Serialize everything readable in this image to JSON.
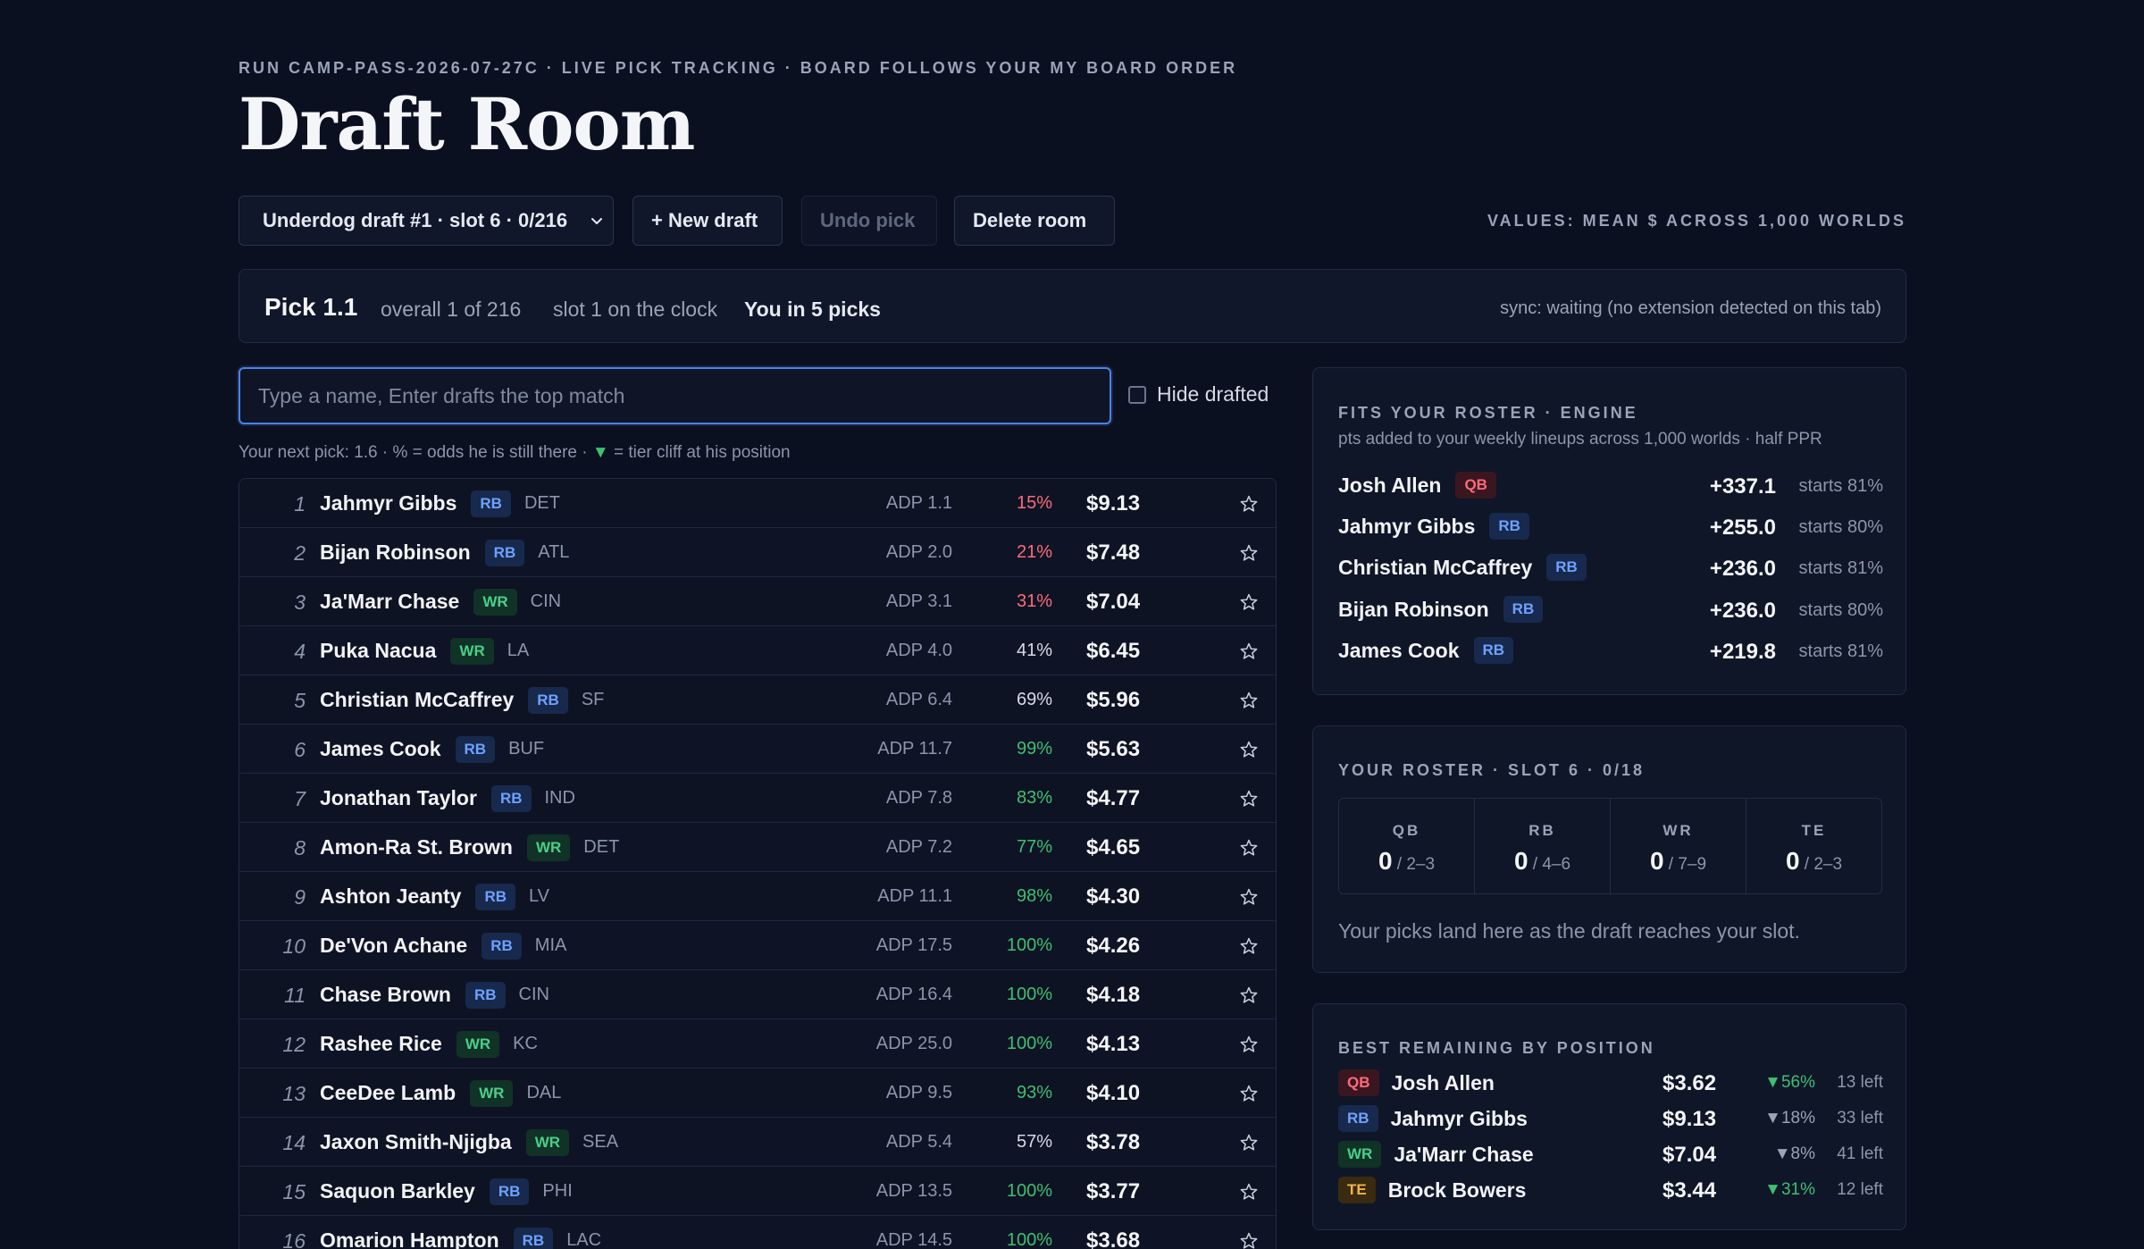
{
  "header": {
    "eyebrow": "RUN CAMP-PASS-2026-07-27C · LIVE PICK TRACKING · BOARD FOLLOWS YOUR MY BOARD ORDER",
    "title": "Draft Room"
  },
  "toolbar": {
    "draft_select": "Underdog draft #1 · slot 6 · 0/216",
    "new_draft": "+ New draft",
    "undo_pick": "Undo pick",
    "delete_room": "Delete room",
    "values_note": "VALUES: MEAN $ ACROSS 1,000 WORLDS"
  },
  "pickbar": {
    "pick": "Pick 1.1",
    "overall": "overall 1 of 216",
    "slot": "slot 1 on the clock",
    "you_in": "You in 5 picks",
    "sync": "sync: waiting (no extension detected on this tab)"
  },
  "search": {
    "placeholder": "Type a name, Enter drafts the top match",
    "value": "",
    "hide_drafted": "Hide drafted"
  },
  "legend": {
    "before": "Your next pick: 1.6 · % = odds he is still there ·",
    "triangle": "▼",
    "after": "= tier cliff at his position"
  },
  "players": [
    {
      "rank": "1",
      "name": "Jahmyr Gibbs",
      "pos": "RB",
      "team": "DET",
      "adp": "ADP 1.1",
      "odds": "15%",
      "tone": "low",
      "value": "$9.13"
    },
    {
      "rank": "2",
      "name": "Bijan Robinson",
      "pos": "RB",
      "team": "ATL",
      "adp": "ADP 2.0",
      "odds": "21%",
      "tone": "low",
      "value": "$7.48"
    },
    {
      "rank": "3",
      "name": "Ja'Marr Chase",
      "pos": "WR",
      "team": "CIN",
      "adp": "ADP 3.1",
      "odds": "31%",
      "tone": "low",
      "value": "$7.04"
    },
    {
      "rank": "4",
      "name": "Puka Nacua",
      "pos": "WR",
      "team": "LA",
      "adp": "ADP 4.0",
      "odds": "41%",
      "tone": "mid",
      "value": "$6.45"
    },
    {
      "rank": "5",
      "name": "Christian McCaffrey",
      "pos": "RB",
      "team": "SF",
      "adp": "ADP 6.4",
      "odds": "69%",
      "tone": "mid",
      "value": "$5.96"
    },
    {
      "rank": "6",
      "name": "James Cook",
      "pos": "RB",
      "team": "BUF",
      "adp": "ADP 11.7",
      "odds": "99%",
      "tone": "high",
      "value": "$5.63"
    },
    {
      "rank": "7",
      "name": "Jonathan Taylor",
      "pos": "RB",
      "team": "IND",
      "adp": "ADP 7.8",
      "odds": "83%",
      "tone": "high",
      "value": "$4.77"
    },
    {
      "rank": "8",
      "name": "Amon-Ra St. Brown",
      "pos": "WR",
      "team": "DET",
      "adp": "ADP 7.2",
      "odds": "77%",
      "tone": "high",
      "value": "$4.65"
    },
    {
      "rank": "9",
      "name": "Ashton Jeanty",
      "pos": "RB",
      "team": "LV",
      "adp": "ADP 11.1",
      "odds": "98%",
      "tone": "high",
      "value": "$4.30"
    },
    {
      "rank": "10",
      "name": "De'Von Achane",
      "pos": "RB",
      "team": "MIA",
      "adp": "ADP 17.5",
      "odds": "100%",
      "tone": "high",
      "value": "$4.26"
    },
    {
      "rank": "11",
      "name": "Chase Brown",
      "pos": "RB",
      "team": "CIN",
      "adp": "ADP 16.4",
      "odds": "100%",
      "tone": "high",
      "value": "$4.18"
    },
    {
      "rank": "12",
      "name": "Rashee Rice",
      "pos": "WR",
      "team": "KC",
      "adp": "ADP 25.0",
      "odds": "100%",
      "tone": "high",
      "value": "$4.13"
    },
    {
      "rank": "13",
      "name": "CeeDee Lamb",
      "pos": "WR",
      "team": "DAL",
      "adp": "ADP 9.5",
      "odds": "93%",
      "tone": "high",
      "value": "$4.10"
    },
    {
      "rank": "14",
      "name": "Jaxon Smith-Njigba",
      "pos": "WR",
      "team": "SEA",
      "adp": "ADP 5.4",
      "odds": "57%",
      "tone": "mid",
      "value": "$3.78"
    },
    {
      "rank": "15",
      "name": "Saquon Barkley",
      "pos": "RB",
      "team": "PHI",
      "adp": "ADP 13.5",
      "odds": "100%",
      "tone": "high",
      "value": "$3.77"
    },
    {
      "rank": "16",
      "name": "Omarion Hampton",
      "pos": "RB",
      "team": "LAC",
      "adp": "ADP 14.5",
      "odds": "100%",
      "tone": "high",
      "value": "$3.68"
    }
  ],
  "fits": {
    "title": "FITS YOUR ROSTER · ENGINE",
    "subtitle": "pts added to your weekly lineups across 1,000 worlds · half PPR",
    "rows": [
      {
        "name": "Josh Allen",
        "pos": "QB",
        "pts": "+337.1",
        "starts": "starts 81%"
      },
      {
        "name": "Jahmyr Gibbs",
        "pos": "RB",
        "pts": "+255.0",
        "starts": "starts 80%"
      },
      {
        "name": "Christian McCaffrey",
        "pos": "RB",
        "pts": "+236.0",
        "starts": "starts 81%"
      },
      {
        "name": "Bijan Robinson",
        "pos": "RB",
        "pts": "+236.0",
        "starts": "starts 80%"
      },
      {
        "name": "James Cook",
        "pos": "RB",
        "pts": "+219.8",
        "starts": "starts 81%"
      }
    ]
  },
  "roster": {
    "title": "YOUR ROSTER · SLOT 6 · 0/18",
    "cells": [
      {
        "pos": "QB",
        "count": "0",
        "range": "/ 2–3"
      },
      {
        "pos": "RB",
        "count": "0",
        "range": "/ 4–6"
      },
      {
        "pos": "WR",
        "count": "0",
        "range": "/ 7–9"
      },
      {
        "pos": "TE",
        "count": "0",
        "range": "/ 2–3"
      }
    ],
    "note": "Your picks land here as the draft reaches your slot."
  },
  "best": {
    "title": "BEST REMAINING BY POSITION",
    "rows": [
      {
        "pos": "QB",
        "name": "Josh Allen",
        "value": "$3.62",
        "drop": "▼56%",
        "tone": "green",
        "left": "13 left"
      },
      {
        "pos": "RB",
        "name": "Jahmyr Gibbs",
        "value": "$9.13",
        "drop": "▼18%",
        "tone": "gray",
        "left": "33 left"
      },
      {
        "pos": "WR",
        "name": "Ja'Marr Chase",
        "value": "$7.04",
        "drop": "▼8%",
        "tone": "gray",
        "left": "41 left"
      },
      {
        "pos": "TE",
        "name": "Brock Bowers",
        "value": "$3.44",
        "drop": "▼31%",
        "tone": "green",
        "left": "12 left"
      }
    ]
  },
  "colors": {
    "background": "#0b1020",
    "accent": "#4b82e6",
    "rb": "#6fa1ff",
    "wr": "#49d08a",
    "qb": "#ff6b7a",
    "te": "#f0b44c"
  }
}
